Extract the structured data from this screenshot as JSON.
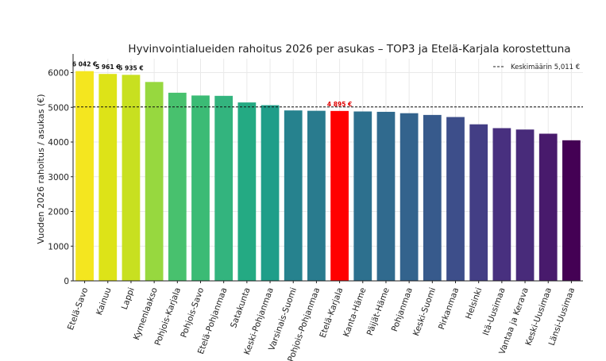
{
  "chart_data": {
    "type": "bar",
    "title": "Hyvinvointialueiden rahoitus 2026 per asukas – TOP3 ja Etelä-Karjala korostettuna",
    "xlabel": "",
    "ylabel": "Vuoden 2026 rahoitus / asukas (€)",
    "ylim": [
      0,
      6400
    ],
    "yticks": [
      "0",
      "1000",
      "2000",
      "3000",
      "4000",
      "5000",
      "6000"
    ],
    "grid": true,
    "categories": [
      "Etelä-Savo",
      "Kainuu",
      "Lappi",
      "Kymenlaakso",
      "Pohjois-Karjala",
      "Pohjois-Savo",
      "Etelä-Pohjanmaa",
      "Satakunta",
      "Keski-Pohjanmaa",
      "Varsinais-Suomi",
      "Pohjois-Pohjanmaa",
      "Etelä-Karjala",
      "Kanta-Häme",
      "Päijät-Häme",
      "Pohjanmaa",
      "Keski-Suomi",
      "Pirkanmaa",
      "Helsinki",
      "Itä-Uusimaa",
      "Vantaa ja Kerava",
      "Keski-Uusimaa",
      "Länsi-Uusimaa"
    ],
    "values": [
      6042,
      5961,
      5935,
      5730,
      5420,
      5340,
      5330,
      5140,
      5060,
      4910,
      4900,
      4895,
      4880,
      4870,
      4830,
      4780,
      4720,
      4510,
      4400,
      4360,
      4240,
      4050
    ],
    "colors": [
      "#f4e61f",
      "#dde318",
      "#c8e020",
      "#97d83f",
      "#48c16e",
      "#3bbb75",
      "#33b47e",
      "#24aa83",
      "#1f9e89",
      "#26828e",
      "#297b8e",
      "#ff0000",
      "#2d708e",
      "#306a8e",
      "#33638d",
      "#375a8c",
      "#3d4e8a",
      "#433e85",
      "#48307f",
      "#482b7a",
      "#481a6c",
      "#440154"
    ],
    "value_labels": [
      {
        "category": "Etelä-Savo",
        "text": "6 042 €"
      },
      {
        "category": "Kainuu",
        "text": "5 961 €"
      },
      {
        "category": "Lappi",
        "text": "5 935 €"
      },
      {
        "category": "Etelä-Karjala",
        "text": "4 895 €",
        "highlight": true
      }
    ],
    "reference_line": {
      "value": 5011,
      "style": "dashed",
      "label": "Keskimäärin 5,011 €"
    },
    "legend_position": "top-right"
  },
  "colors": {
    "highlight": "#ff0000",
    "label_default": "#111111",
    "axis": "#222222",
    "grid": "#e9e9e9"
  }
}
